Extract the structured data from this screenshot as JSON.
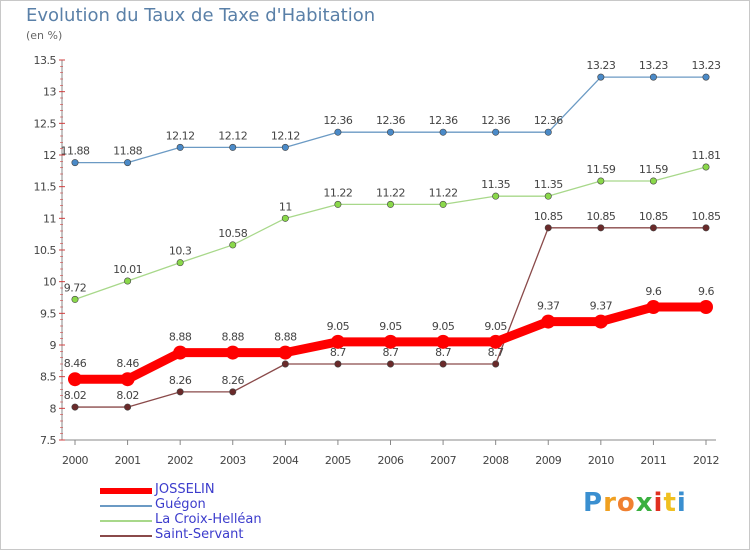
{
  "title": "Evolution du Taux de Taxe d'Habitation",
  "unit": "(en %)",
  "logo": "Proxiti",
  "chart_data": {
    "type": "line",
    "x": [
      "2000",
      "2001",
      "2002",
      "2003",
      "2004",
      "2005",
      "2006",
      "2007",
      "2008",
      "2009",
      "2010",
      "2011",
      "2012"
    ],
    "ylim": [
      7.5,
      13.5
    ],
    "yticks": [
      "7.5",
      "8",
      "8.5",
      "9",
      "9.5",
      "10",
      "10.5",
      "11",
      "11.5",
      "12",
      "12.5",
      "13",
      "13.5"
    ],
    "grid": false,
    "legend_position": "bottom-left",
    "series": [
      {
        "name": "JOSSELIN",
        "color": "#ff0000",
        "values": [
          8.46,
          8.46,
          8.88,
          8.88,
          8.88,
          9.05,
          9.05,
          9.05,
          9.05,
          9.37,
          9.37,
          9.6,
          9.6
        ],
        "labels": [
          "8.46",
          "8.46",
          "8.88",
          "8.88",
          "8.88",
          "9.05",
          "9.05",
          "9.05",
          "9.05",
          "9.37",
          "9.37",
          "9.6",
          "9.6"
        ]
      },
      {
        "name": "Guégon",
        "color": "#6b9ac4",
        "values": [
          11.88,
          11.88,
          12.12,
          12.12,
          12.12,
          12.36,
          12.36,
          12.36,
          12.36,
          12.36,
          13.23,
          13.23,
          13.23
        ],
        "labels": [
          "11.88",
          "11.88",
          "12.12",
          "12.12",
          "12.12",
          "12.36",
          "12.36",
          "12.36",
          "12.36",
          "12.36",
          "13.23",
          "13.23",
          "13.23"
        ]
      },
      {
        "name": "La Croix-Helléan",
        "color": "#a8d88a",
        "values": [
          9.72,
          10.01,
          10.3,
          10.58,
          11,
          11.22,
          11.22,
          11.22,
          11.35,
          11.35,
          11.59,
          11.59,
          11.81
        ],
        "labels": [
          "9.72",
          "10.01",
          "10.3",
          "10.58",
          "11",
          "11.22",
          "11.22",
          "11.22",
          "11.35",
          "11.35",
          "11.59",
          "11.59",
          "11.81"
        ]
      },
      {
        "name": "Saint-Servant",
        "color": "#8a4a4a",
        "values": [
          8.02,
          8.02,
          8.26,
          8.26,
          8.7,
          8.7,
          8.7,
          8.7,
          8.7,
          10.85,
          10.85,
          10.85,
          10.85
        ],
        "labels": [
          "8.02",
          "8.02",
          "8.26",
          "8.26",
          "8.7",
          "8.7",
          "8.7",
          "8.7",
          "8.7",
          "10.85",
          "10.85",
          "10.85",
          "10.85"
        ]
      }
    ]
  }
}
